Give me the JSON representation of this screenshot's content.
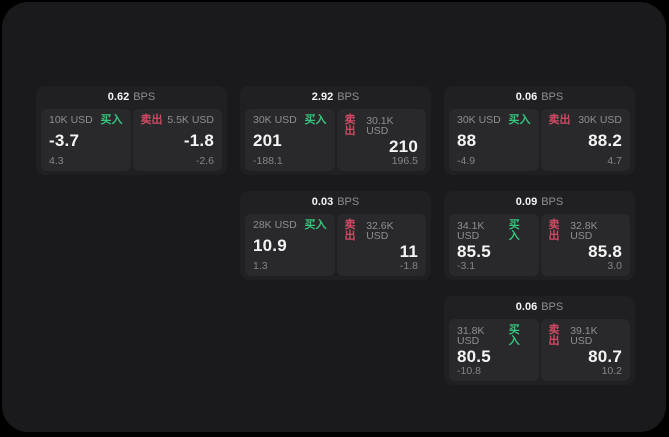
{
  "labels": {
    "bps_unit": "BPS",
    "buy": "买入",
    "sell": "卖出"
  },
  "colors": {
    "background": "#000000",
    "panel": "#1a1a1c",
    "card": "#202023",
    "tile": "#29292c",
    "buy_green": "#34c57c",
    "sell_red": "#d04a63",
    "text_primary": "#f5f5f5",
    "text_muted": "#8e8e93",
    "text_dim": "#85858a"
  },
  "cards": [
    {
      "bps": "0.62",
      "row": 1,
      "col": 1,
      "buy": {
        "size": "10K USD",
        "value": "-3.7",
        "change": "4.3"
      },
      "sell": {
        "size": "5.5K USD",
        "value": "-1.8",
        "change": "-2.6"
      }
    },
    {
      "bps": "2.92",
      "row": 1,
      "col": 2,
      "buy": {
        "size": "30K USD",
        "value": "201",
        "change": "-188.1"
      },
      "sell": {
        "size": "30.1K USD",
        "value": "210",
        "change": "196.5"
      }
    },
    {
      "bps": "0.06",
      "row": 1,
      "col": 3,
      "buy": {
        "size": "30K USD",
        "value": "88",
        "change": "-4.9"
      },
      "sell": {
        "size": "30K USD",
        "value": "88.2",
        "change": "4.7"
      }
    },
    {
      "bps": "0.03",
      "row": 2,
      "col": 2,
      "buy": {
        "size": "28K USD",
        "value": "10.9",
        "change": "1.3"
      },
      "sell": {
        "size": "32.6K USD",
        "value": "11",
        "change": "-1.8"
      }
    },
    {
      "bps": "0.09",
      "row": 2,
      "col": 3,
      "buy": {
        "size": "34.1K USD",
        "value": "85.5",
        "change": "-3.1"
      },
      "sell": {
        "size": "32.8K USD",
        "value": "85.8",
        "change": "3.0"
      }
    },
    {
      "bps": "0.06",
      "row": 3,
      "col": 3,
      "buy": {
        "size": "31.8K USD",
        "value": "80.5",
        "change": "-10.8"
      },
      "sell": {
        "size": "39.1K USD",
        "value": "80.7",
        "change": "10.2"
      }
    }
  ]
}
